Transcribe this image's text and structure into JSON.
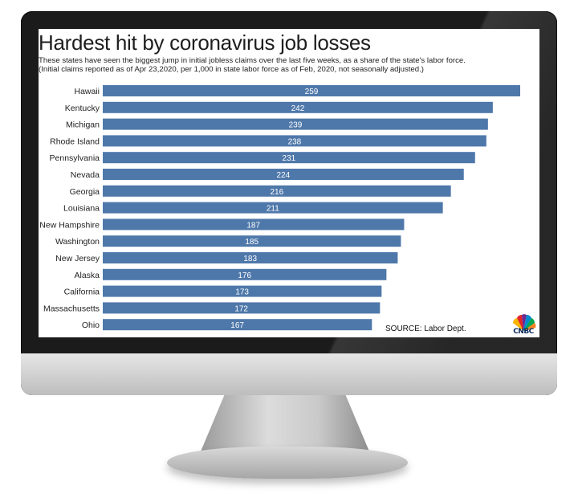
{
  "chart_data": {
    "type": "bar",
    "orientation": "horizontal",
    "title": "Hardest hit by coronavirus job losses",
    "subtitle": "These states have seen the biggest jump in initial jobless claims over the last five weeks, as a share of the state's labor force.\n(Initial claims reported as of Apr 23,2020, per 1,000 in state labor force as of Feb, 2020, not seasonally adjusted.)",
    "categories": [
      "Hawaii",
      "Kentucky",
      "Michigan",
      "Rhode Island",
      "Pennsylvania",
      "Nevada",
      "Georgia",
      "Louisiana",
      "New Hampshire",
      "Washington",
      "New Jersey",
      "Alaska",
      "California",
      "Massachusetts",
      "Ohio"
    ],
    "values": [
      259,
      242,
      239,
      238,
      231,
      224,
      216,
      211,
      187,
      185,
      183,
      176,
      173,
      172,
      167
    ],
    "bar_color": "#4f78aa",
    "source": "SOURCE: Labor Dept.",
    "grid": false
  },
  "branding": {
    "logo": "CNBC"
  },
  "icons": {
    "logo": "cnbc-peacock-icon"
  }
}
